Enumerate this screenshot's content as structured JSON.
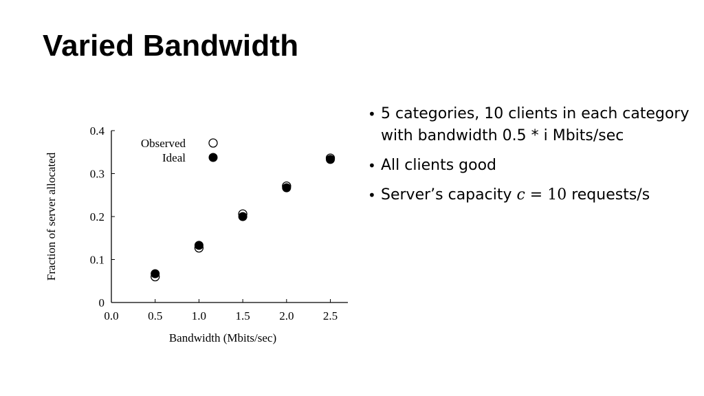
{
  "slide": {
    "title": "Varied Bandwidth"
  },
  "bullets": {
    "b1": "5 categories, 10 clients in each category with bandwidth 0.5 * i Mbits/sec",
    "b2": "All clients good",
    "b3_prefix": "Server’s capacity ",
    "b3_var": "c",
    "b3_eq": " = 10",
    "b3_suffix": " requests/s"
  },
  "chart_data": {
    "type": "scatter",
    "title": "",
    "xlabel": "Bandwidth (Mbits/sec)",
    "ylabel": "Fraction of server allocated",
    "xlim": [
      0.0,
      2.7
    ],
    "ylim": [
      0.0,
      0.4
    ],
    "xticks": [
      "0.0",
      "0.5",
      "1.0",
      "1.5",
      "2.0",
      "2.5"
    ],
    "yticks": [
      "0",
      "0.1",
      "0.2",
      "0.3",
      "0.4"
    ],
    "grid": false,
    "legend_position": "top-center",
    "series": [
      {
        "name": "Observed",
        "marker": "open-circle",
        "color": "#000000",
        "x": [
          0.5,
          1.0,
          1.5,
          2.0,
          2.5
        ],
        "y": [
          0.06,
          0.127,
          0.206,
          0.271,
          0.336
        ]
      },
      {
        "name": "Ideal",
        "marker": "filled-circle",
        "color": "#000000",
        "x": [
          0.5,
          1.0,
          1.5,
          2.0,
          2.5
        ],
        "y": [
          0.067,
          0.133,
          0.2,
          0.267,
          0.333
        ]
      }
    ]
  }
}
